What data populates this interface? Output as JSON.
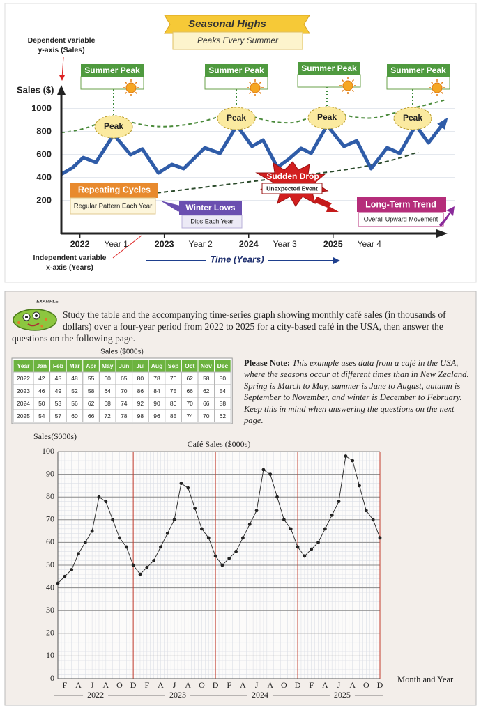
{
  "infographic": {
    "title": "Seasonal Highs",
    "subtitle": "Peaks Every Summer",
    "y_axis_note": [
      "Dependent variable",
      "y-axis (Sales)"
    ],
    "y_label": "Sales ($)",
    "ylim": [
      -85,
      1188
    ],
    "yticks": [
      200,
      400,
      600,
      800,
      1000
    ],
    "xlim": [
      2021.78,
      2026.34
    ],
    "xticks": [
      2022,
      2023,
      2024,
      2025
    ],
    "period_labels": [
      "Year 1",
      "Year 2",
      "Year 3",
      "Year 4"
    ],
    "x_axis_note": [
      "Independent variable",
      "x-axis (Years)"
    ],
    "x_label": "Time (Years)",
    "line": {
      "color": "#2f5ca8",
      "x": [
        2021.78,
        2021.92,
        2022.04,
        2022.19,
        2022.4,
        2022.6,
        2022.74,
        2022.93,
        2023.09,
        2023.23,
        2023.48,
        2023.66,
        2023.86,
        2024.04,
        2024.17,
        2024.34,
        2024.48,
        2024.62,
        2024.74,
        2024.93,
        2025.13,
        2025.28,
        2025.45,
        2025.64,
        2025.79,
        2025.98,
        2026.13,
        2026.34
      ],
      "values": [
        430,
        490,
        575,
        533,
        775,
        600,
        650,
        442,
        515,
        479,
        660,
        612,
        855,
        673,
        727,
        490,
        564,
        655,
        612,
        855,
        673,
        721,
        479,
        660,
        612,
        855,
        703,
        903
      ]
    },
    "summer_peaks": [
      "Summer Peak",
      "Summer Peak",
      "Summer Peak",
      "Summer Peak"
    ],
    "peak_labels": [
      "Peak",
      "Peak",
      "Peak",
      "Peak"
    ],
    "cycles": {
      "title": "Repeating Cycles",
      "text": "Regular Pattern Each Year"
    },
    "winter": {
      "title": "Winter Lows",
      "text": "Dips Each Year"
    },
    "drop": {
      "title": "Sudden Drop",
      "text": "Unexpected Event"
    },
    "trend": {
      "title": "Long-Term Trend",
      "text": "Overall Upward Movement"
    }
  },
  "example": {
    "badge": "EXAMPLE",
    "intro": "Study the table and the accompanying time-series graph showing monthly café sales (in thousands of dollars) over a four-year period from 2022 to 2025 for a city-based café in the USA, then answer the questions on the following page.",
    "note_label": "Please Note:",
    "note": "This example uses data from a café in the USA, where the seasons occur at different times than in New Zealand. Spring is March to May, summer is June to August, autumn is September to November, and winter is December to February. Keep this in mind when answering the questions on the next page."
  },
  "table": {
    "caption": "Sales ($000s)",
    "header": [
      "Year",
      "Jan",
      "Feb",
      "Mar",
      "Apr",
      "May",
      "Jun",
      "Jul",
      "Aug",
      "Sep",
      "Oct",
      "Nov",
      "Dec"
    ],
    "rows": [
      [
        "2022",
        42,
        45,
        48,
        55,
        60,
        65,
        80,
        78,
        70,
        62,
        58,
        50
      ],
      [
        "2023",
        46,
        49,
        52,
        58,
        64,
        70,
        86,
        84,
        75,
        66,
        62,
        54
      ],
      [
        "2024",
        50,
        53,
        56,
        62,
        68,
        74,
        92,
        90,
        80,
        70,
        66,
        58
      ],
      [
        "2025",
        54,
        57,
        60,
        66,
        72,
        78,
        98,
        96,
        85,
        74,
        70,
        62
      ]
    ]
  },
  "chart": {
    "type": "line",
    "title": "Café Sales ($000s)",
    "y_label": "Sales($000s)",
    "x_label": "Month and Year",
    "ylim": [
      0,
      100
    ],
    "yticks": [
      0,
      10,
      20,
      30,
      40,
      50,
      60,
      70,
      80,
      90,
      100
    ],
    "month_labels": [
      "F",
      "A",
      "J",
      "A",
      "O",
      "D"
    ],
    "years": [
      "2022",
      "2023",
      "2024",
      "2025"
    ],
    "color": "#222222",
    "grid": true
  }
}
